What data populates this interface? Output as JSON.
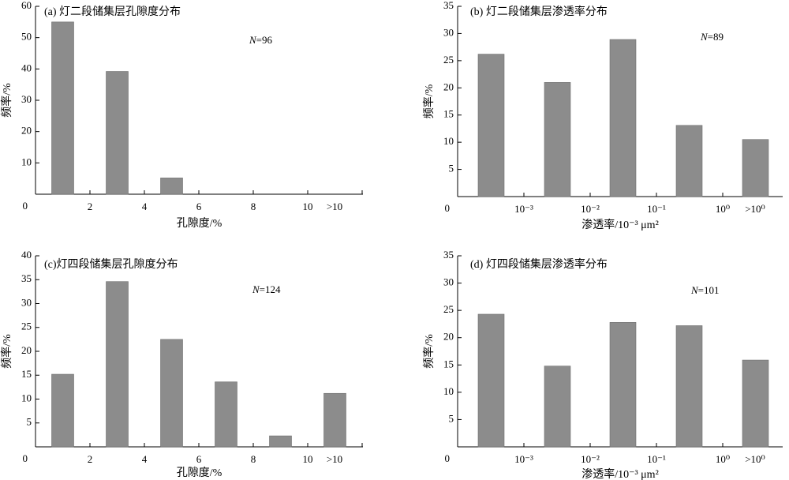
{
  "chart_data": [
    {
      "type": "bar",
      "title": "(a) 灯二段储集层孔隙度分布",
      "n_label": "N=96",
      "xlabel": "孔隙度/%",
      "ylabel": "频率/%",
      "ylim": [
        0,
        60
      ],
      "yticks": [
        0,
        10,
        20,
        30,
        40,
        50,
        60
      ],
      "xtick_labels": [
        "0",
        "2",
        "4",
        "6",
        "8",
        "10",
        ">10"
      ],
      "categories": [
        "0–2",
        "2–4",
        "4–6",
        "6–8",
        "8–10",
        ">10"
      ],
      "values": [
        55,
        39.2,
        5.2,
        0,
        0,
        0
      ]
    },
    {
      "type": "bar",
      "title": "(b) 灯二段储集层渗透率分布",
      "n_label": "N=89",
      "xlabel": "渗透率/10⁻³ μm²",
      "ylabel": "频率/%",
      "ylim": [
        0,
        35
      ],
      "yticks": [
        0,
        5,
        10,
        15,
        20,
        25,
        30,
        35
      ],
      "xtick_labels": [
        "10⁻³",
        "10⁻²",
        "10⁻¹",
        "10⁰",
        ">10⁰"
      ],
      "categories": [
        "<10⁻³",
        "10⁻³–10⁻²",
        "10⁻²–10⁻¹",
        "10⁻¹–10⁰",
        ">10⁰"
      ],
      "values": [
        26.2,
        21,
        28.9,
        13.1,
        10.5
      ]
    },
    {
      "type": "bar",
      "title": "(c)灯四段储集层孔隙度分布",
      "n_label": "N=124",
      "xlabel": "孔隙度/%",
      "ylabel": "频率/%",
      "ylim": [
        0,
        40
      ],
      "yticks": [
        0,
        5,
        10,
        15,
        20,
        25,
        30,
        35,
        40
      ],
      "xtick_labels": [
        "0",
        "2",
        "4",
        "6",
        "8",
        "10",
        ">10"
      ],
      "categories": [
        "0–2",
        "2–4",
        "4–6",
        "6–8",
        "8–10",
        ">10"
      ],
      "values": [
        15.2,
        34.6,
        22.5,
        13.6,
        2.3,
        11.2
      ]
    },
    {
      "type": "bar",
      "title": "(d) 灯四段储集层渗透率分布",
      "n_label": "N=101",
      "xlabel": "渗透率/10⁻³ μm²",
      "ylabel": "频率/%",
      "ylim": [
        0,
        35
      ],
      "yticks": [
        0,
        5,
        10,
        15,
        20,
        25,
        30,
        35
      ],
      "xtick_labels": [
        "10⁻³",
        "10⁻²",
        "10⁻¹",
        "10⁰",
        ">10⁰"
      ],
      "categories": [
        "<10⁻³",
        "10⁻³–10⁻²",
        "10⁻²–10⁻¹",
        "10⁻¹–10⁰",
        ">10⁰"
      ],
      "values": [
        24.3,
        14.8,
        22.8,
        22.2,
        15.9
      ]
    }
  ],
  "colors": {
    "bar": "#8c8c8c",
    "axis": "#000000"
  }
}
